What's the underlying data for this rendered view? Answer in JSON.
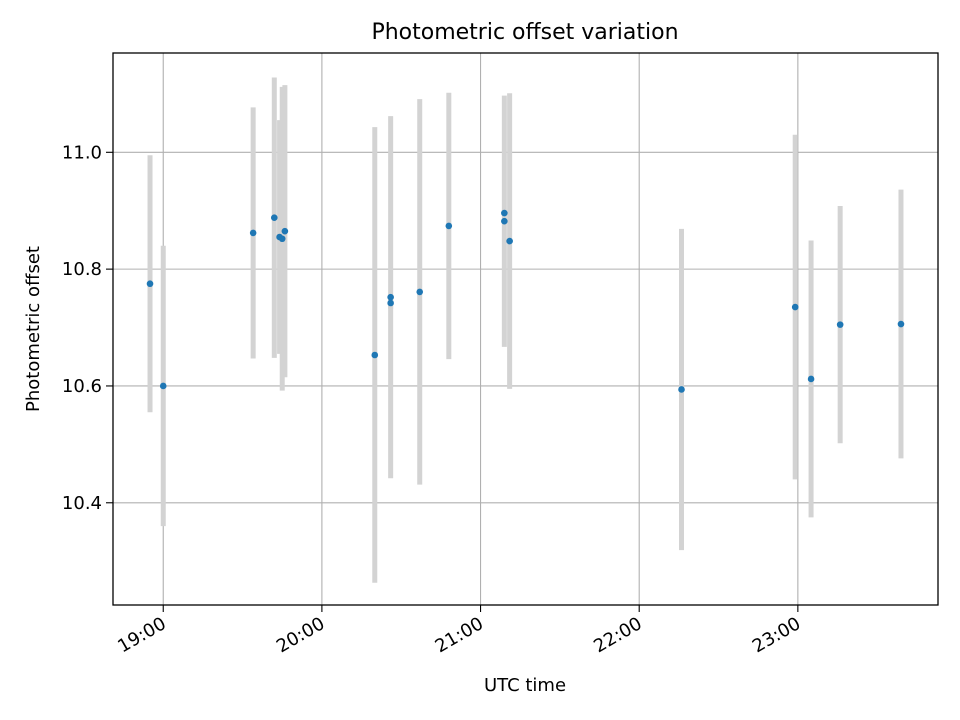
{
  "chart_data": {
    "type": "scatter",
    "title": "Photometric offset variation",
    "xlabel": "UTC time",
    "ylabel": "Photometric offset",
    "x_tick_labels": [
      "19:00",
      "20:00",
      "21:00",
      "22:00",
      "23:00"
    ],
    "x_ticks": [
      "19:00",
      "20:00",
      "21:00",
      "22:00",
      "23:00"
    ],
    "y_ticks": [
      10.4,
      10.6,
      10.8,
      11.0
    ],
    "y_tick_labels": [
      "10.4",
      "10.6",
      "10.8",
      "11.0"
    ],
    "xlim": [
      "18:41",
      "23:53"
    ],
    "ylim": [
      10.225,
      11.17
    ],
    "grid": true,
    "point_color": "#1f77b4",
    "errorbar_color": "#d3d3d3",
    "points": [
      {
        "time": "18:55",
        "y": 10.775,
        "err": 0.22
      },
      {
        "time": "19:00",
        "y": 10.6,
        "err": 0.24
      },
      {
        "time": "19:34",
        "y": 10.862,
        "err": 0.215
      },
      {
        "time": "19:42",
        "y": 10.888,
        "err": 0.24
      },
      {
        "time": "19:44",
        "y": 10.855,
        "err": 0.2
      },
      {
        "time": "19:45",
        "y": 10.852,
        "err": 0.26
      },
      {
        "time": "19:46",
        "y": 10.865,
        "err": 0.25
      },
      {
        "time": "20:20",
        "y": 10.653,
        "err": 0.39
      },
      {
        "time": "20:26",
        "y": 10.742,
        "err": 0.01
      },
      {
        "time": "20:26",
        "y": 10.752,
        "err": 0.31
      },
      {
        "time": "20:37",
        "y": 10.761,
        "err": 0.33
      },
      {
        "time": "20:48",
        "y": 10.874,
        "err": 0.228
      },
      {
        "time": "21:09",
        "y": 10.896,
        "err": 0.005
      },
      {
        "time": "21:09",
        "y": 10.882,
        "err": 0.215
      },
      {
        "time": "21:11",
        "y": 10.848,
        "err": 0.253
      },
      {
        "time": "22:16",
        "y": 10.594,
        "err": 0.275
      },
      {
        "time": "22:59",
        "y": 10.735,
        "err": 0.295
      },
      {
        "time": "23:05",
        "y": 10.612,
        "err": 0.237
      },
      {
        "time": "23:16",
        "y": 10.705,
        "err": 0.203
      },
      {
        "time": "23:39",
        "y": 10.706,
        "err": 0.23
      }
    ]
  }
}
